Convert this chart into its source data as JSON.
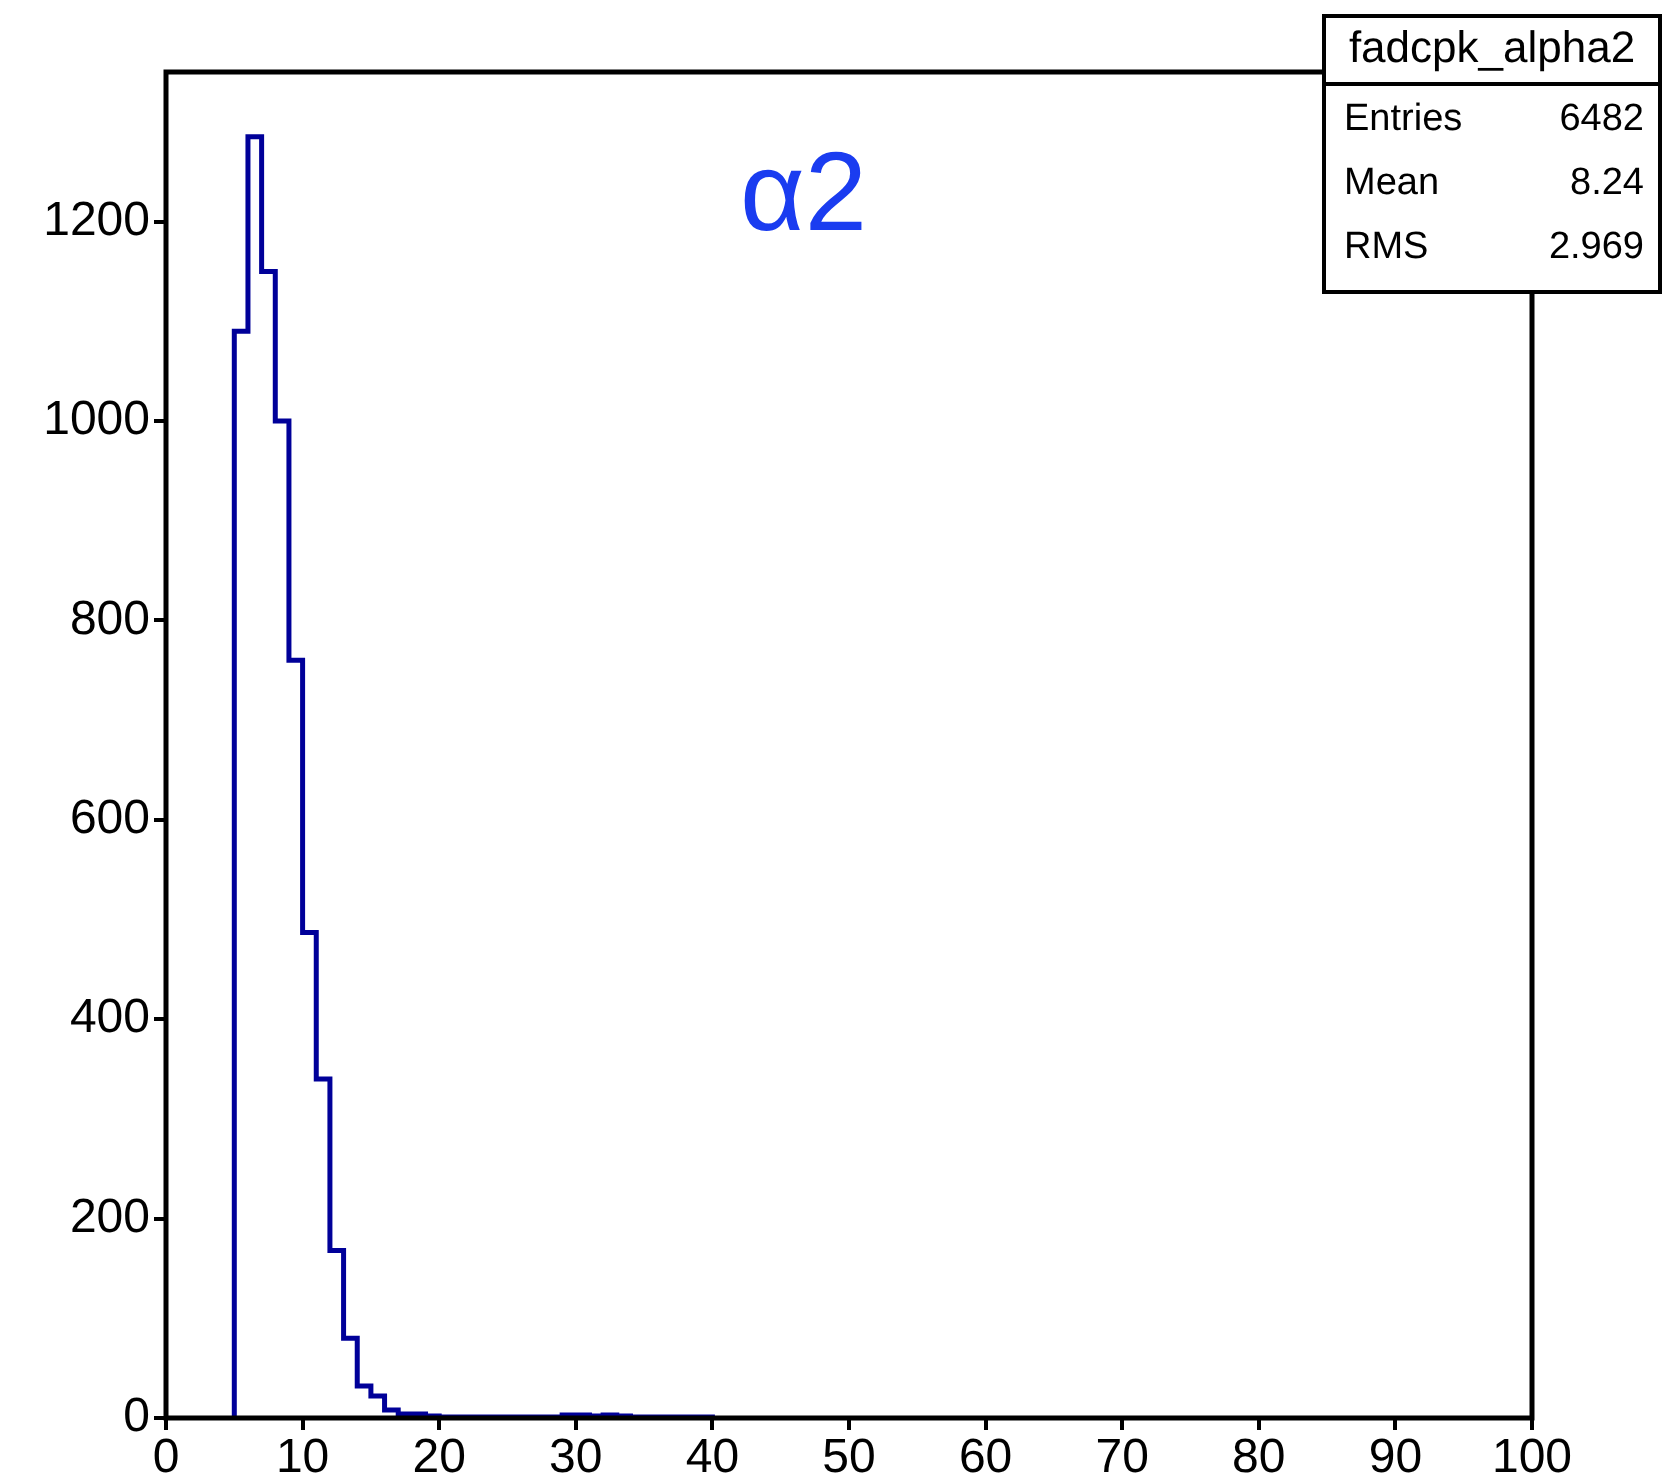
{
  "chart_data": {
    "type": "histogram",
    "bins": [
      5,
      6,
      7,
      8,
      9,
      10,
      11,
      12,
      13,
      14,
      15,
      16,
      17,
      18,
      19,
      20,
      21,
      22,
      23,
      24,
      25,
      26,
      27,
      28,
      29,
      30,
      31,
      32,
      33,
      34,
      35,
      36,
      37,
      38,
      39,
      40
    ],
    "values": [
      1090,
      1285,
      1150,
      1000,
      760,
      487,
      340,
      168,
      80,
      32,
      22,
      8,
      4,
      4,
      2,
      1,
      1,
      1,
      1,
      1,
      1,
      1,
      1,
      1,
      3,
      3,
      2,
      3,
      2,
      1,
      1,
      1,
      1,
      1,
      1
    ],
    "color": "#000099",
    "xlim": [
      0,
      100
    ],
    "xticks": [
      0,
      10,
      20,
      30,
      40,
      50,
      60,
      70,
      80,
      90,
      100
    ],
    "ylim": [
      0,
      1350
    ],
    "yticks": [
      0,
      200,
      400,
      600,
      800,
      1000,
      1200
    ],
    "annotations": [
      "α2",
      "fadcpk_alpha2",
      "Entries",
      "6482",
      "Mean",
      "8.24",
      "RMS",
      "2.969"
    ]
  }
}
